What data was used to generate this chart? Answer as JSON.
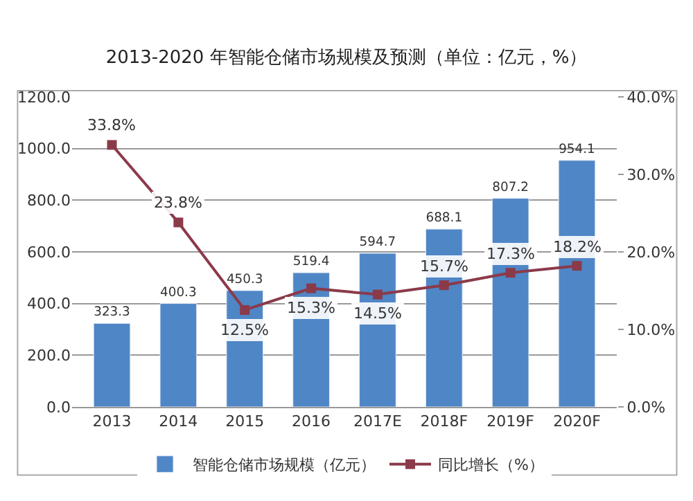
{
  "chart_data": {
    "type": "bar",
    "title": "2013-2020 年智能仓储市场规模及预测（单位：亿元，%）",
    "categories": [
      "2013",
      "2014",
      "2015",
      "2016",
      "2017E",
      "2018F",
      "2019F",
      "2020F"
    ],
    "series": [
      {
        "name": "智能仓储市场规模（亿元）",
        "color": "#4f86c6",
        "values": [
          323.3,
          400.3,
          450.3,
          519.4,
          594.7,
          688.1,
          807.2,
          954.1
        ],
        "value_labels": [
          "323.3",
          "400.3",
          "450.3",
          "519.4",
          "594.7",
          "688.1",
          "807.2",
          "954.1"
        ]
      },
      {
        "name": "同比增长（%）",
        "type": "line",
        "axis": "y2",
        "color": "#8b3a4a",
        "values": [
          33.8,
          23.8,
          12.5,
          15.3,
          14.5,
          15.7,
          17.3,
          18.2
        ],
        "value_labels": [
          "33.8%",
          "23.8%",
          "12.5%",
          "15.3%",
          "14.5%",
          "15.7%",
          "17.3%",
          "18.2%"
        ]
      }
    ],
    "ylim": [
      0,
      1200
    ],
    "yticks": [
      {
        "value": 0,
        "label": "0.0"
      },
      {
        "value": 200,
        "label": "200.0"
      },
      {
        "value": 400,
        "label": "400.0"
      },
      {
        "value": 600,
        "label": "600.0"
      },
      {
        "value": 800,
        "label": "800.0"
      },
      {
        "value": 1000,
        "label": "1000.0"
      },
      {
        "value": 1200,
        "label": "1200.0"
      }
    ],
    "y2lim": [
      0,
      40
    ],
    "y2ticks": [
      {
        "value": 0,
        "label": "0.0%"
      },
      {
        "value": 10,
        "label": "10.0%"
      },
      {
        "value": 20,
        "label": "20.0%"
      },
      {
        "value": 30,
        "label": "30.0%"
      },
      {
        "value": 40,
        "label": "40.0%"
      }
    ],
    "grid": "y",
    "legend": "bottom",
    "marker": "square",
    "line_style": "solid"
  }
}
